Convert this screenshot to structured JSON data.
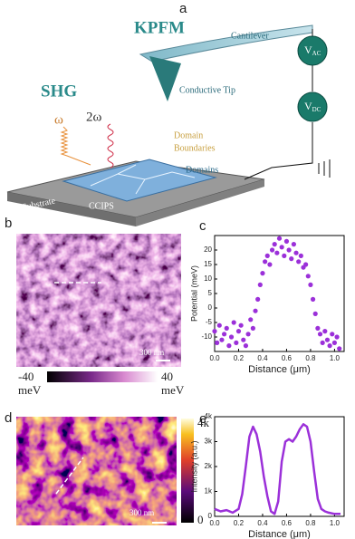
{
  "panels": {
    "a": "a",
    "b": "b",
    "c": "c",
    "d": "d",
    "e": "e"
  },
  "schematic": {
    "kpfm": "KPFM",
    "cantilever": "Cantilever",
    "conductive_tip": "Conductive Tip",
    "v_ac": {
      "symbol": "V",
      "subscript": "AC"
    },
    "v_dc": {
      "symbol": "V",
      "subscript": "DC"
    },
    "shg": "SHG",
    "omega": "ω",
    "two_omega": "2ω",
    "domain_boundaries": [
      "Domain",
      "Boundaries"
    ],
    "domains": "Domains",
    "substrate": "Si Substrate",
    "ccips": "CCIPS"
  },
  "image_b": {
    "scale_bar": "300 nm",
    "colorbar": {
      "min": "-40",
      "max": "40",
      "unit": "meV"
    }
  },
  "image_d": {
    "scale_bar": "300 nm",
    "colorbar": {
      "max": "4k",
      "min": "0"
    }
  },
  "chart_data": [
    {
      "type": "scatter",
      "y_label": "Potential (meV)",
      "x_label": "Distance (μm)",
      "color": "#9b30d9",
      "x": [
        0.0,
        0.02,
        0.04,
        0.06,
        0.08,
        0.1,
        0.12,
        0.14,
        0.16,
        0.18,
        0.2,
        0.22,
        0.24,
        0.26,
        0.28,
        0.3,
        0.32,
        0.34,
        0.36,
        0.38,
        0.4,
        0.42,
        0.44,
        0.46,
        0.48,
        0.5,
        0.52,
        0.54,
        0.56,
        0.58,
        0.6,
        0.62,
        0.64,
        0.66,
        0.68,
        0.7,
        0.72,
        0.74,
        0.76,
        0.78,
        0.8,
        0.82,
        0.84,
        0.86,
        0.88,
        0.9,
        0.92,
        0.94,
        0.96,
        0.98,
        1.0,
        1.02,
        1.04
      ],
      "values": [
        -8,
        -12,
        -6,
        -11,
        -9,
        -7,
        -13,
        -10,
        -5,
        -12,
        -8,
        -6,
        -11,
        -13,
        -9,
        -4,
        -7,
        -1,
        3,
        8,
        12,
        16,
        18,
        15,
        20,
        22,
        19,
        24,
        21,
        18,
        23,
        20,
        17,
        22,
        19,
        16,
        18,
        14,
        15,
        11,
        8,
        3,
        -2,
        -7,
        -9,
        -12,
        -8,
        -11,
        -13,
        -9,
        -12,
        -10,
        -14
      ],
      "xlim": [
        0,
        1.08
      ],
      "ylim": [
        -15,
        25
      ],
      "xticks": [
        {
          "value": 0,
          "label": "0.0"
        },
        {
          "value": 0.2,
          "label": "0.2"
        },
        {
          "value": 0.4,
          "label": "0.4"
        },
        {
          "value": 0.6,
          "label": "0.6"
        },
        {
          "value": 0.8,
          "label": "0.8"
        },
        {
          "value": 1,
          "label": "1.0"
        }
      ],
      "yticks": [
        -10,
        -5,
        0,
        5,
        10,
        15,
        20
      ]
    },
    {
      "type": "line",
      "y_label": "Intensity (a.u.)",
      "x_label": "Distance (μm)",
      "color": "#9b30d9",
      "x": [
        0,
        0.05,
        0.1,
        0.15,
        0.2,
        0.23,
        0.26,
        0.29,
        0.32,
        0.35,
        0.38,
        0.41,
        0.44,
        0.47,
        0.5,
        0.53,
        0.56,
        0.59,
        0.62,
        0.65,
        0.68,
        0.71,
        0.74,
        0.77,
        0.8,
        0.83,
        0.86,
        0.89,
        0.92,
        0.95,
        1.0,
        1.05
      ],
      "values": [
        300,
        200,
        250,
        150,
        300,
        900,
        2000,
        3200,
        3600,
        3300,
        2600,
        1600,
        800,
        200,
        100,
        600,
        2200,
        3000,
        3100,
        3000,
        3200,
        3500,
        3700,
        3600,
        3000,
        1800,
        700,
        300,
        200,
        150,
        100,
        100
      ],
      "xlim": [
        0,
        1.08
      ],
      "ylim": [
        0,
        4000
      ],
      "xticks": [
        {
          "value": 0,
          "label": "0.0"
        },
        {
          "value": 0.2,
          "label": "0.2"
        },
        {
          "value": 0.4,
          "label": "0.4"
        },
        {
          "value": 0.6,
          "label": "0.6"
        },
        {
          "value": 0.8,
          "label": "0.8"
        },
        {
          "value": 1,
          "label": "1.0"
        }
      ],
      "yticks": [
        0,
        {
          "value": 1000,
          "label": "1k"
        },
        {
          "value": 2000,
          "label": "2k"
        },
        {
          "value": 3000,
          "label": "3k"
        },
        {
          "value": 4000,
          "label": "4k"
        }
      ]
    }
  ]
}
